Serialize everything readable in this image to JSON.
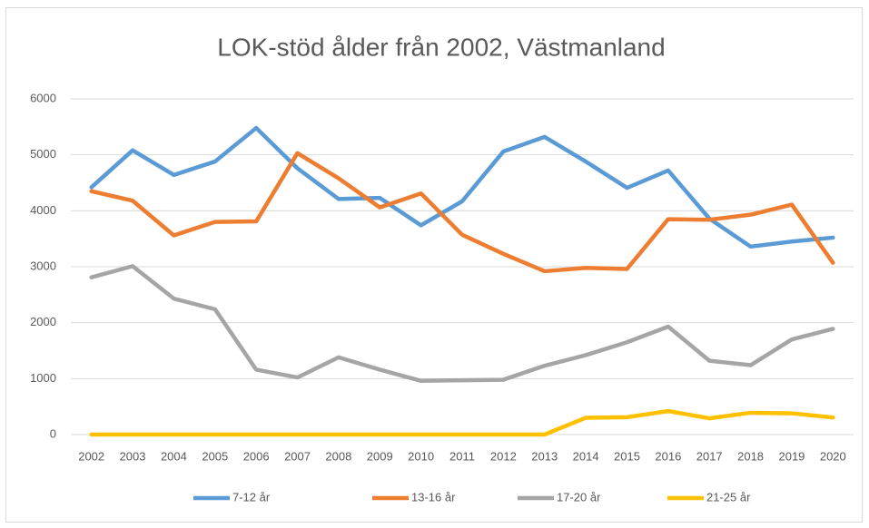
{
  "chart_data": {
    "type": "line",
    "title": "LOK-stöd ålder från 2002, Västmanland",
    "categories": [
      "2002",
      "2003",
      "2004",
      "2005",
      "2006",
      "2007",
      "2008",
      "2009",
      "2010",
      "2011",
      "2012",
      "2013",
      "2014",
      "2015",
      "2016",
      "2017",
      "2018",
      "2019",
      "2020"
    ],
    "series": [
      {
        "name": "7-12 år",
        "color": "#5b9bd5",
        "values": [
          4420,
          5080,
          4640,
          4880,
          5480,
          4760,
          4210,
          4230,
          3740,
          4170,
          5060,
          5320,
          4880,
          4410,
          4720,
          3860,
          3360,
          3450,
          3520
        ]
      },
      {
        "name": "13-16 år",
        "color": "#ed7d31",
        "values": [
          4350,
          4180,
          3560,
          3800,
          3810,
          5030,
          4580,
          4060,
          4310,
          3570,
          3230,
          2920,
          2980,
          2960,
          3850,
          3840,
          3930,
          4110,
          3070
        ]
      },
      {
        "name": "17-20 år",
        "color": "#a5a5a5",
        "values": [
          2810,
          3010,
          2430,
          2240,
          1160,
          1020,
          1380,
          1160,
          960,
          970,
          980,
          1230,
          1420,
          1650,
          1930,
          1320,
          1240,
          1700,
          1890
        ]
      },
      {
        "name": "21-25 år",
        "color": "#ffc000",
        "values": [
          0,
          0,
          0,
          0,
          0,
          0,
          0,
          0,
          0,
          0,
          0,
          0,
          300,
          310,
          420,
          290,
          390,
          380,
          305
        ]
      }
    ],
    "ylim": [
      0,
      6000
    ],
    "yticks": [
      0,
      1000,
      2000,
      3000,
      4000,
      5000,
      6000
    ],
    "grid": true,
    "legend": "bottom"
  }
}
